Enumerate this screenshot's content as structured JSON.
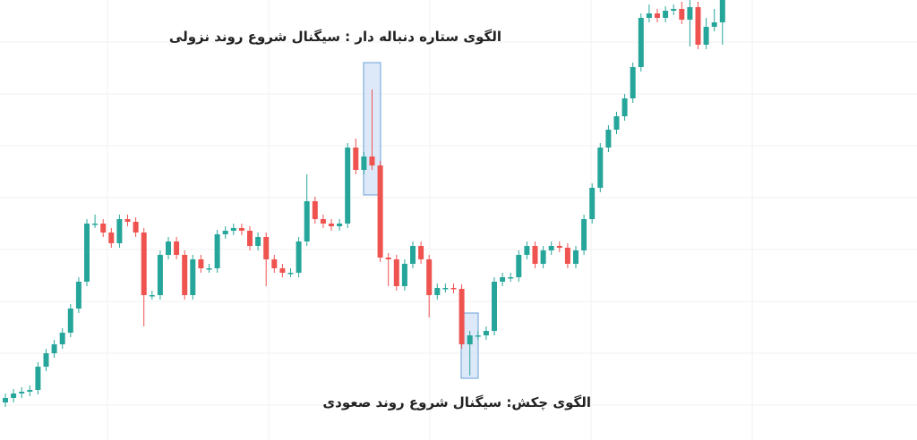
{
  "chart_data": {
    "type": "candlestick",
    "annotations": [
      "الگوی ستاره دنباله دار : سیگنال  شروع روند نزولی",
      "الگوی چکش: سیگنال شروع روند صعودی"
    ],
    "open": [
      42,
      47,
      52,
      54,
      56,
      82,
      97,
      107,
      120,
      147,
      177,
      242,
      242,
      232,
      220,
      247,
      244,
      232,
      162,
      162,
      207,
      222,
      207,
      162,
      202,
      192,
      192,
      230,
      234,
      237,
      234,
      217,
      227,
      202,
      192,
      187,
      187,
      222,
      267,
      247,
      242,
      239,
      242,
      327,
      302,
      317,
      307,
      204,
      202,
      172,
      197,
      217,
      202,
      162,
      170,
      170,
      169,
      107,
      117,
      117,
      122,
      177,
      182,
      182,
      207,
      217,
      197,
      212,
      217,
      215,
      197,
      212,
      247,
      282,
      327,
      347,
      362,
      382,
      417,
      472,
      477,
      472,
      480,
      482,
      470,
      484,
      442,
      462,
      467
    ],
    "high": [
      52,
      57,
      59,
      61,
      87,
      102,
      112,
      125,
      152,
      182,
      247,
      252,
      247,
      237,
      252,
      252,
      249,
      237,
      167,
      212,
      227,
      227,
      212,
      207,
      207,
      197,
      235,
      239,
      242,
      242,
      239,
      232,
      232,
      207,
      197,
      192,
      227,
      297,
      272,
      252,
      247,
      247,
      332,
      337,
      322,
      392,
      312,
      209,
      207,
      202,
      222,
      222,
      207,
      175,
      175,
      175,
      174,
      122,
      122,
      127,
      182,
      187,
      187,
      212,
      222,
      222,
      217,
      222,
      222,
      220,
      217,
      252,
      287,
      332,
      352,
      367,
      387,
      422,
      477,
      487,
      482,
      485,
      487,
      490,
      492,
      490,
      472,
      482,
      492
    ],
    "low": [
      37,
      42,
      47,
      49,
      51,
      77,
      92,
      102,
      115,
      142,
      172,
      237,
      227,
      215,
      215,
      239,
      227,
      127,
      157,
      157,
      202,
      202,
      157,
      157,
      187,
      187,
      187,
      225,
      229,
      229,
      212,
      212,
      172,
      187,
      182,
      182,
      182,
      217,
      242,
      237,
      234,
      234,
      237,
      297,
      297,
      302,
      199,
      172,
      167,
      167,
      192,
      197,
      137,
      157,
      165,
      164,
      102,
      72,
      112,
      112,
      117,
      172,
      177,
      177,
      202,
      192,
      192,
      207,
      210,
      192,
      192,
      207,
      242,
      277,
      322,
      342,
      357,
      377,
      412,
      467,
      467,
      467,
      475,
      465,
      440,
      437,
      437,
      457,
      442
    ],
    "close": [
      47,
      52,
      54,
      56,
      82,
      97,
      107,
      120,
      147,
      177,
      242,
      242,
      232,
      220,
      247,
      244,
      232,
      162,
      162,
      207,
      222,
      207,
      162,
      202,
      192,
      192,
      230,
      234,
      237,
      234,
      217,
      227,
      202,
      192,
      187,
      187,
      222,
      267,
      247,
      242,
      239,
      242,
      327,
      302,
      317,
      307,
      204,
      202,
      172,
      197,
      217,
      202,
      162,
      170,
      170,
      169,
      107,
      117,
      117,
      122,
      177,
      182,
      182,
      207,
      217,
      197,
      212,
      217,
      215,
      197,
      212,
      247,
      282,
      327,
      347,
      362,
      382,
      417,
      472,
      477,
      472,
      480,
      482,
      470,
      484,
      442,
      462,
      467,
      492
    ],
    "up_color": "#26a69a",
    "down_color": "#ef5350",
    "ylim": [
      0,
      492
    ]
  }
}
